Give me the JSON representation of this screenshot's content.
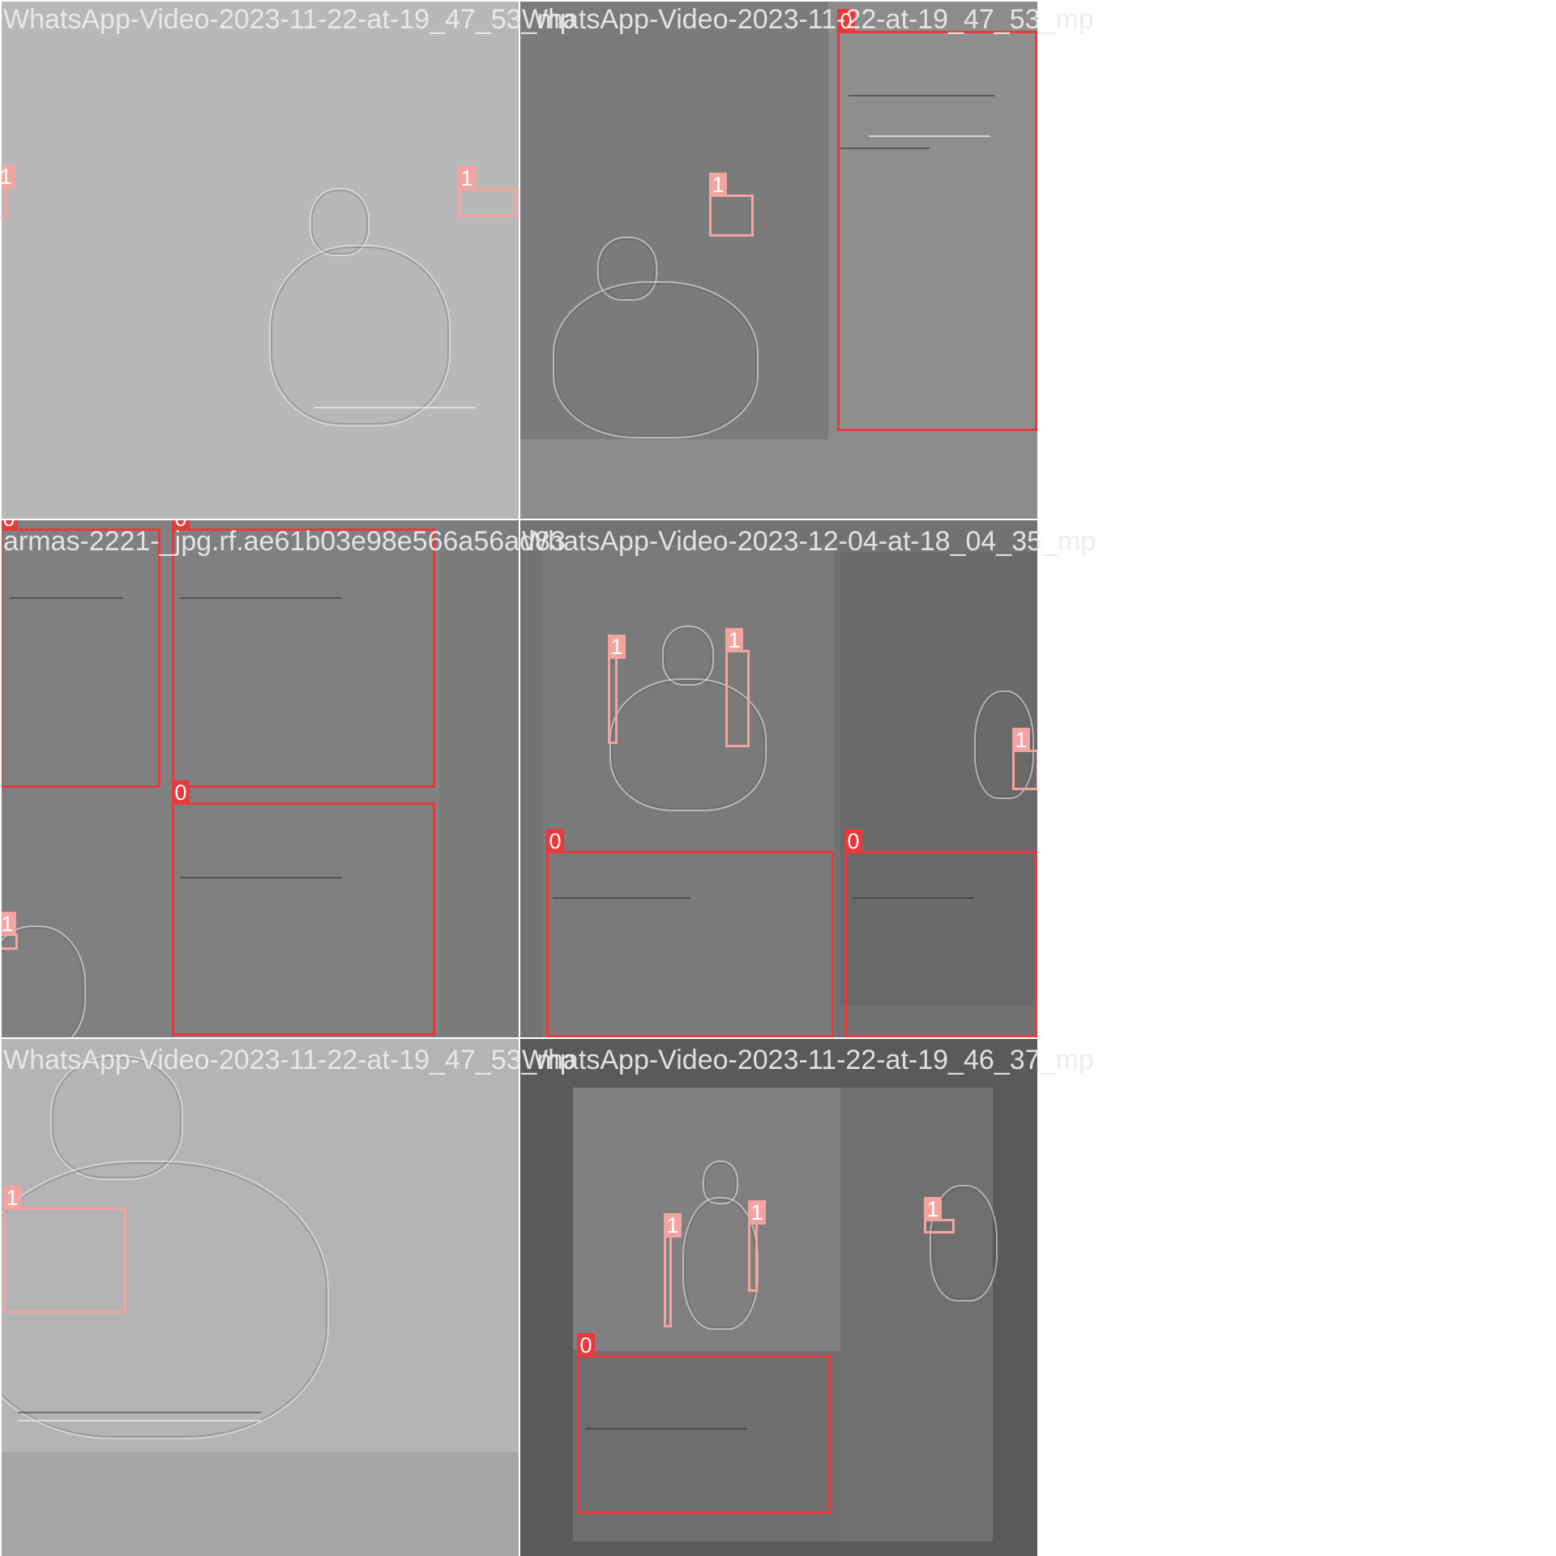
{
  "tiles": [
    {
      "filename": "WhatsApp-Video-2023-11-22-at-19_47_53_mp"
    },
    {
      "filename": "WhatsApp-Video-2023-11-22-at-19_47_53_mp"
    },
    {
      "filename": "armas-2221-_jpg.rf.ae61b03e98e566a56ad83"
    },
    {
      "filename": "WhatsApp-Video-2023-12-04-at-18_04_35_mp"
    },
    {
      "filename": "WhatsApp-Video-2023-11-22-at-19_47_53_mp"
    },
    {
      "filename": "WhatsApp-Video-2023-11-22-at-19_46_37_mp"
    }
  ],
  "labels": {
    "class_0": "0",
    "class_1": "1"
  },
  "colors": {
    "class_0": "#e8393b",
    "class_1": "#f3a3a0",
    "separator": "#ffffff"
  }
}
